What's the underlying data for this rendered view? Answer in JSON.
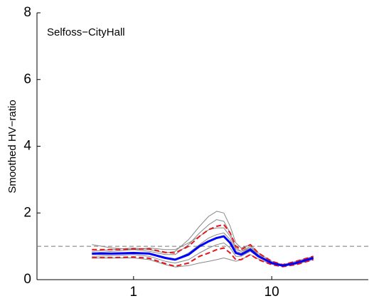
{
  "chart_data": {
    "type": "line",
    "annotation": "Selfoss−CityHall",
    "annotation_color": "#1a1aff",
    "ylabel": "Smoothed HV−ratio",
    "xscale": "log",
    "xlim": [
      0.2,
      50
    ],
    "xticks": [
      1,
      10
    ],
    "ylim": [
      0,
      8
    ],
    "yticks": [
      0,
      2,
      4,
      6,
      8
    ],
    "reference_line": 1,
    "reference_color": "#777777",
    "x": [
      0.5,
      0.7,
      1,
      1.3,
      1.7,
      2,
      2.5,
      3,
      3.5,
      4,
      4.5,
      5,
      5.5,
      6,
      7,
      8,
      10,
      12,
      15,
      20
    ],
    "series": [
      {
        "color": "#888888",
        "width": 1,
        "dashed": false,
        "values": [
          0.85,
          0.9,
          0.95,
          0.9,
          0.8,
          0.85,
          1.2,
          1.6,
          1.9,
          2.05,
          2.0,
          1.6,
          1.1,
          0.95,
          1.05,
          0.8,
          0.55,
          0.45,
          0.55,
          0.7
        ]
      },
      {
        "color": "#888888",
        "width": 1,
        "dashed": false,
        "values": [
          0.8,
          0.85,
          0.9,
          0.85,
          0.75,
          0.75,
          1.05,
          1.4,
          1.65,
          1.8,
          1.75,
          1.4,
          0.95,
          0.85,
          1.0,
          0.75,
          0.52,
          0.43,
          0.52,
          0.68
        ]
      },
      {
        "color": "#888888",
        "width": 1,
        "dashed": false,
        "values": [
          0.75,
          0.8,
          0.82,
          0.8,
          0.65,
          0.6,
          0.8,
          1.05,
          1.25,
          1.35,
          1.4,
          1.2,
          0.85,
          0.8,
          0.95,
          0.72,
          0.5,
          0.42,
          0.5,
          0.66
        ]
      },
      {
        "color": "#888888",
        "width": 1,
        "dashed": false,
        "values": [
          0.7,
          0.72,
          0.75,
          0.7,
          0.55,
          0.5,
          0.6,
          0.8,
          0.95,
          1.05,
          1.1,
          0.95,
          0.7,
          0.7,
          0.85,
          0.68,
          0.48,
          0.41,
          0.48,
          0.63
        ]
      },
      {
        "color": "#888888",
        "width": 1,
        "dashed": false,
        "values": [
          0.65,
          0.65,
          0.65,
          0.6,
          0.45,
          0.38,
          0.42,
          0.5,
          0.55,
          0.6,
          0.65,
          0.6,
          0.55,
          0.6,
          0.75,
          0.62,
          0.46,
          0.4,
          0.46,
          0.6
        ]
      },
      {
        "color": "#888888",
        "width": 1,
        "dashed": false,
        "values": [
          1.05,
          0.95,
          0.9,
          0.95,
          0.9,
          0.9,
          1.1,
          1.3,
          1.5,
          1.55,
          1.55,
          1.3,
          0.9,
          0.85,
          0.95,
          0.75,
          0.52,
          0.43,
          0.52,
          0.67
        ]
      },
      {
        "color": "#e8141c",
        "width": 2,
        "dashed": true,
        "values": [
          0.9,
          0.9,
          0.92,
          0.92,
          0.82,
          0.8,
          1.0,
          1.3,
          1.5,
          1.6,
          1.65,
          1.4,
          1.0,
          0.9,
          1.05,
          0.8,
          0.55,
          0.45,
          0.55,
          0.7
        ]
      },
      {
        "color": "#e8141c",
        "width": 2,
        "dashed": true,
        "values": [
          0.66,
          0.66,
          0.68,
          0.64,
          0.48,
          0.4,
          0.5,
          0.7,
          0.8,
          0.9,
          0.95,
          0.8,
          0.6,
          0.6,
          0.75,
          0.6,
          0.45,
          0.39,
          0.45,
          0.6
        ]
      },
      {
        "color": "#0000ff",
        "width": 3,
        "dashed": false,
        "values": [
          0.78,
          0.78,
          0.8,
          0.78,
          0.65,
          0.6,
          0.75,
          1.0,
          1.15,
          1.25,
          1.3,
          1.1,
          0.8,
          0.75,
          0.9,
          0.7,
          0.5,
          0.42,
          0.5,
          0.65
        ]
      }
    ]
  }
}
